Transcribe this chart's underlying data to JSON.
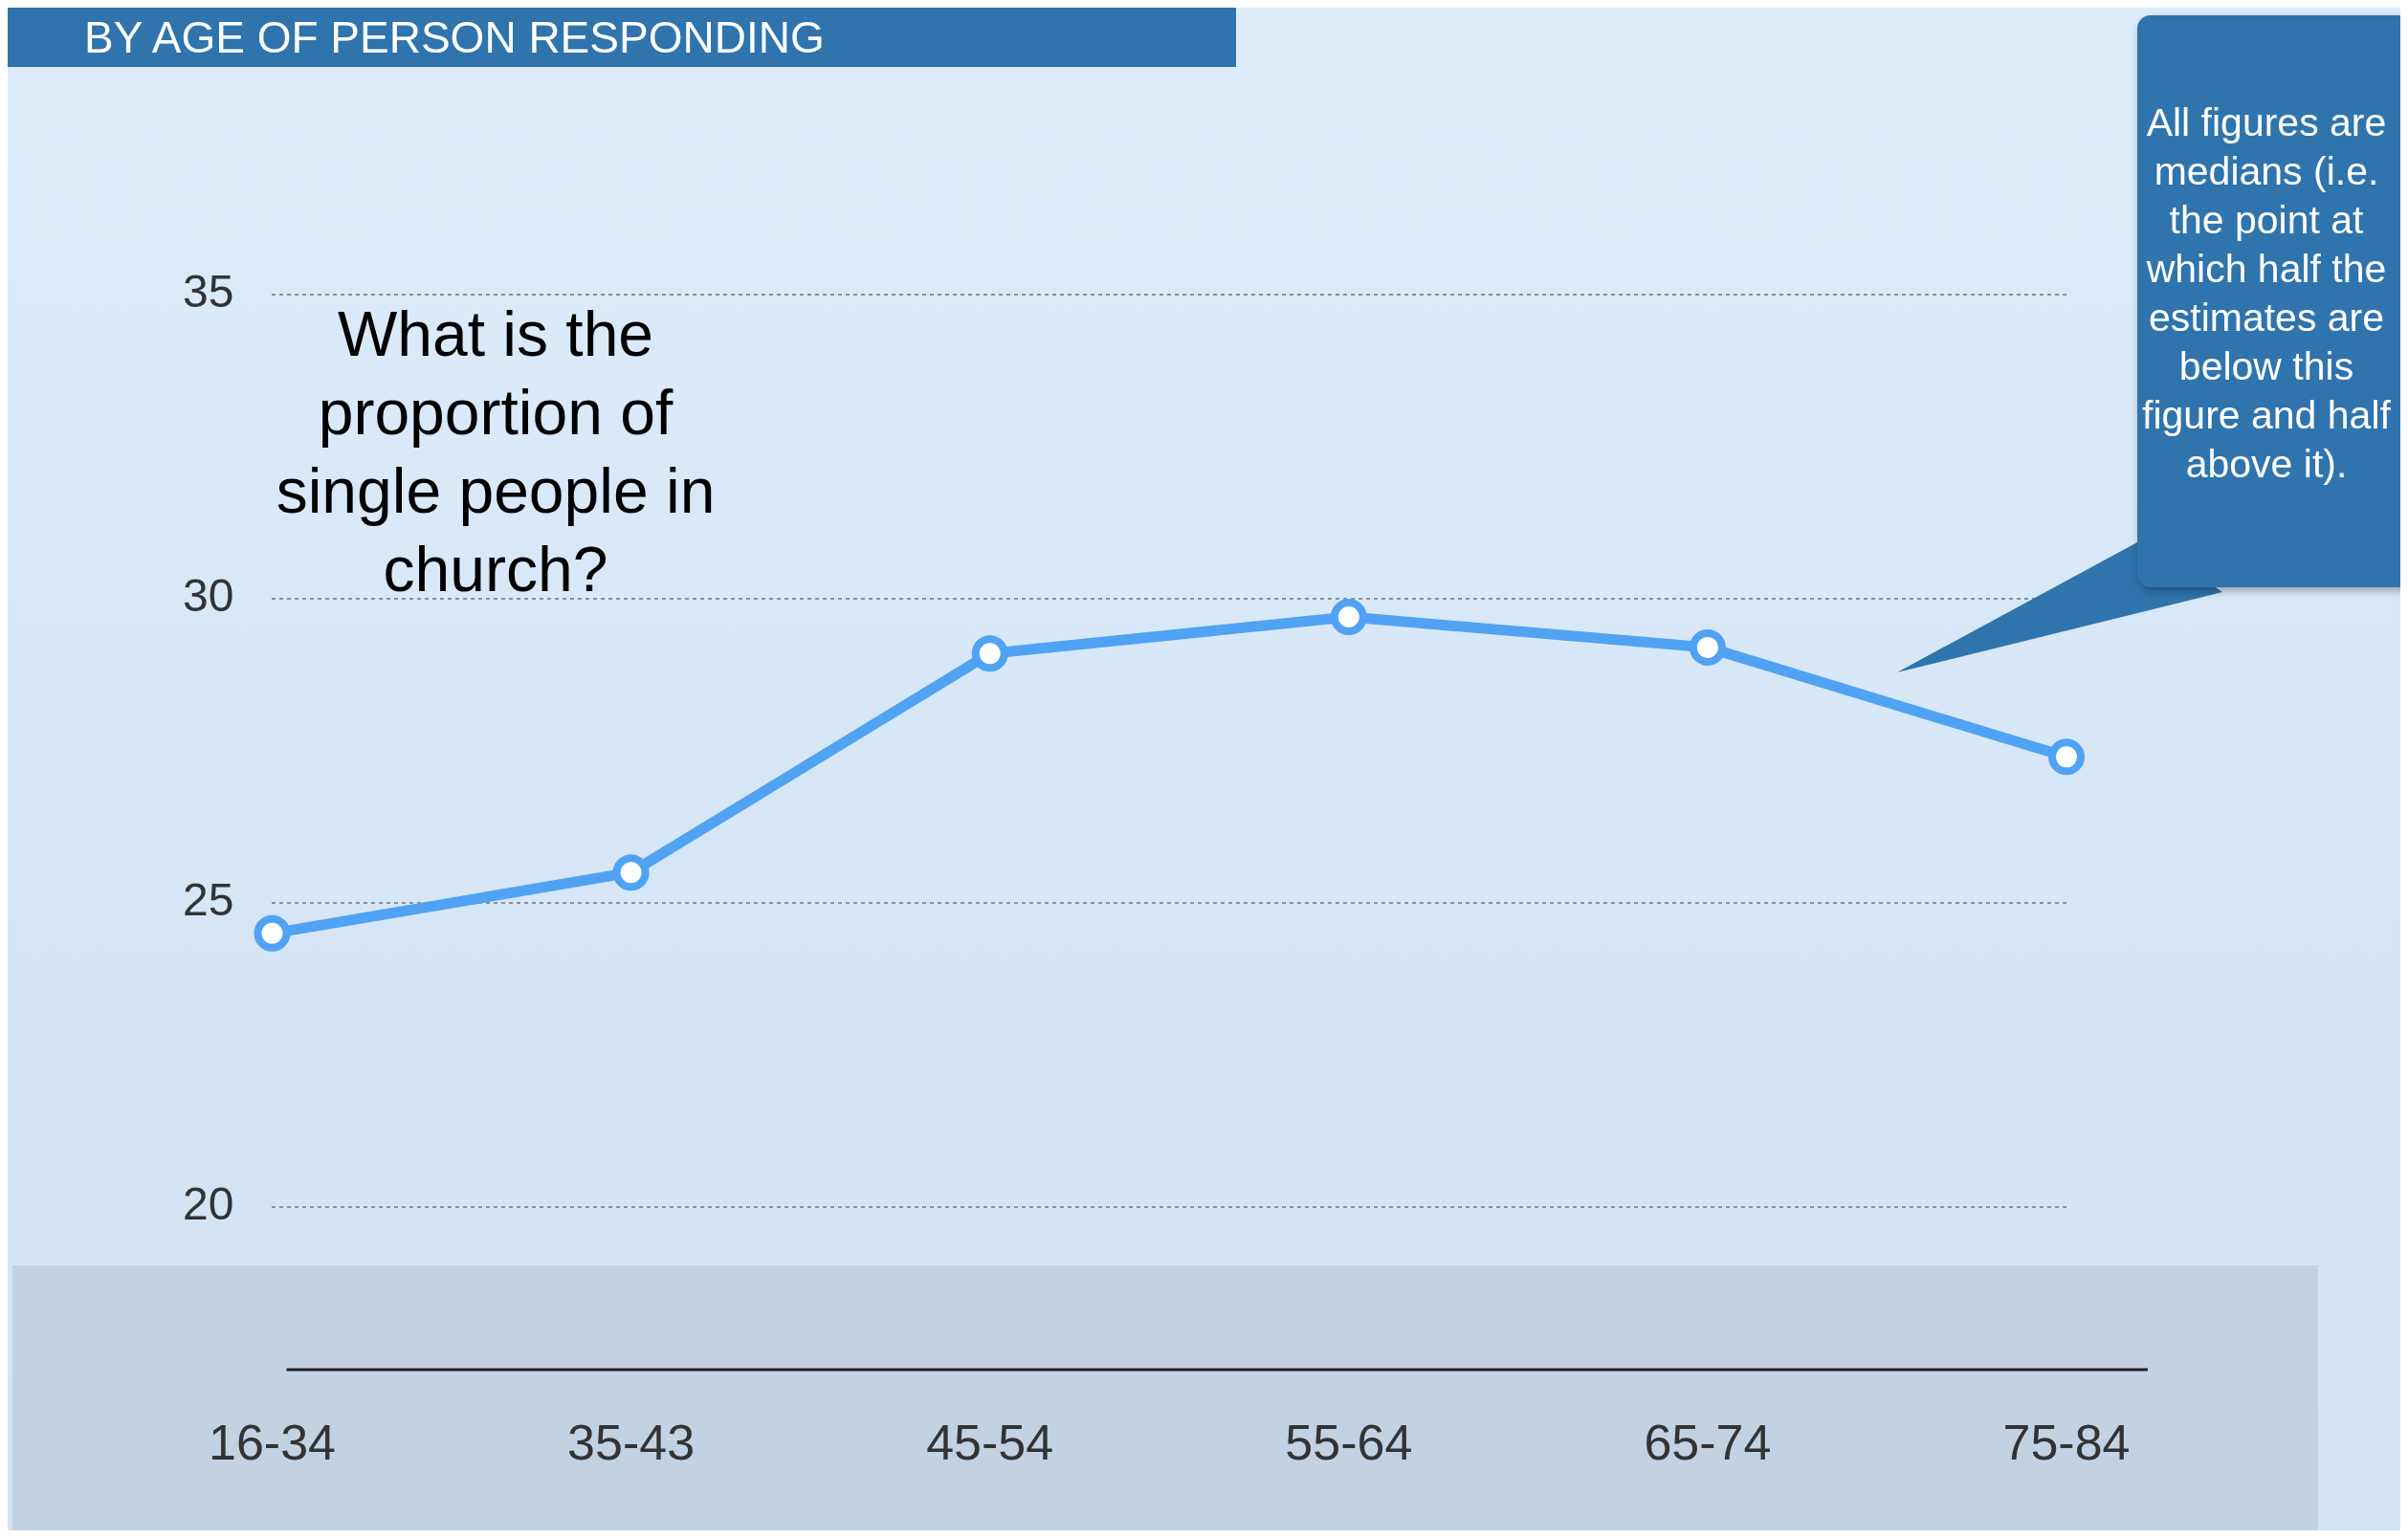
{
  "chart_data": {
    "type": "line",
    "title": "BY AGE OF PERSON RESPONDING",
    "categories": [
      "16-34",
      "35-43",
      "45-54",
      "55-64",
      "65-74",
      "75-84"
    ],
    "values": [
      24.5,
      25.5,
      29.1,
      29.7,
      29.2,
      27.4
    ],
    "color": "#4fa3f2",
    "ylim": [
      20,
      35
    ],
    "yticks": [
      20,
      25,
      30,
      35
    ],
    "grid": "y",
    "marker": "circle",
    "annotations": [
      "What is the proportion of single people in church?",
      "All figures are medians (i.e. the point at which half the estimates are below this figure and half above it)."
    ]
  }
}
